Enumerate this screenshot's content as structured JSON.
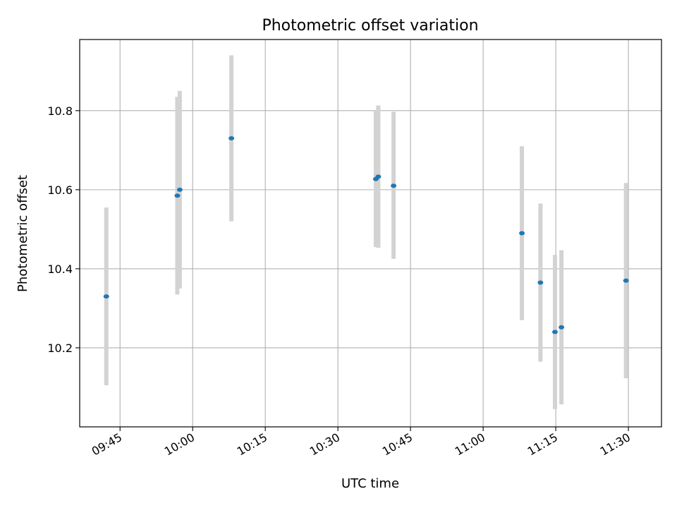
{
  "chart_data": {
    "type": "scatter",
    "title": "Photometric offset variation",
    "xlabel": "UTC time",
    "ylabel": "Photometric offset",
    "grid": true,
    "legend": "none",
    "x_ticks": [
      "09:45",
      "10:00",
      "10:15",
      "10:30",
      "10:45",
      "11:00",
      "11:15",
      "11:30"
    ],
    "y_ticks": [
      "10.2",
      "10.4",
      "10.6",
      "10.8"
    ],
    "xlim": [
      "09:36:40",
      "11:36:50"
    ],
    "ylim": [
      10.0,
      10.98
    ],
    "errorbar_color": "#d3d3d3",
    "marker_color": "#1f77b4",
    "series": [
      {
        "points": [
          {
            "x": "09:42:10",
            "y": 10.33,
            "yerr_low": 10.105,
            "yerr_high": 10.555
          },
          {
            "x": "09:56:50",
            "y": 10.585,
            "yerr_low": 10.335,
            "yerr_high": 10.835
          },
          {
            "x": "09:57:20",
            "y": 10.6,
            "yerr_low": 10.35,
            "yerr_high": 10.85
          },
          {
            "x": "10:08:00",
            "y": 10.73,
            "yerr_low": 10.52,
            "yerr_high": 10.94
          },
          {
            "x": "10:37:50",
            "y": 10.627,
            "yerr_low": 10.455,
            "yerr_high": 10.8
          },
          {
            "x": "10:38:20",
            "y": 10.633,
            "yerr_low": 10.453,
            "yerr_high": 10.813
          },
          {
            "x": "10:41:30",
            "y": 10.61,
            "yerr_low": 10.425,
            "yerr_high": 10.797
          },
          {
            "x": "11:08:00",
            "y": 10.49,
            "yerr_low": 10.27,
            "yerr_high": 10.71
          },
          {
            "x": "11:11:50",
            "y": 10.365,
            "yerr_low": 10.165,
            "yerr_high": 10.565
          },
          {
            "x": "11:14:50",
            "y": 10.24,
            "yerr_low": 10.045,
            "yerr_high": 10.435
          },
          {
            "x": "11:16:10",
            "y": 10.252,
            "yerr_low": 10.057,
            "yerr_high": 10.447
          },
          {
            "x": "11:29:30",
            "y": 10.37,
            "yerr_low": 10.123,
            "yerr_high": 10.617
          }
        ]
      }
    ]
  }
}
